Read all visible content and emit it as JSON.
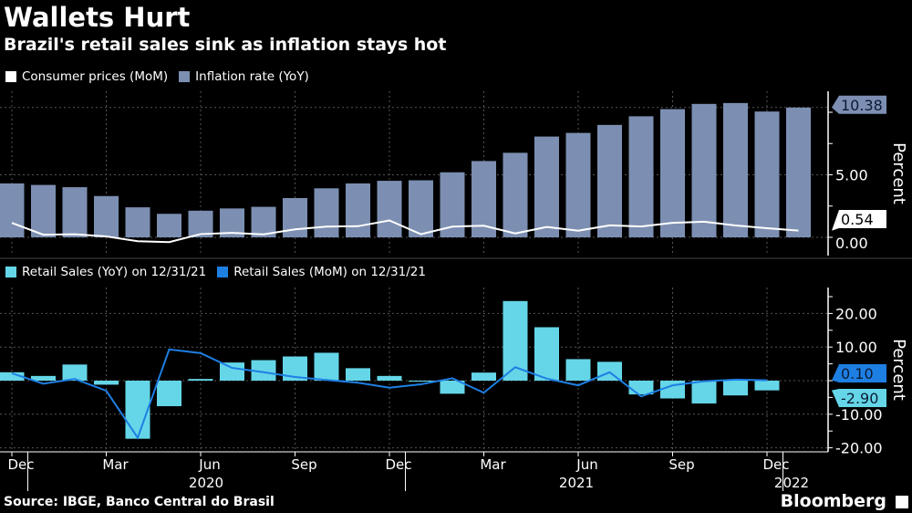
{
  "title": "Wallets Hurt",
  "subtitle": "Brazil's retail sales sink as inflation stays hot",
  "source": "Source: IBGE, Banco Central do Brasil",
  "brand": "Bloomberg",
  "colors": {
    "inflation_bar": "#7C8FB2",
    "cpi_line": "#FFFFFF",
    "retail_yoy_bar": "#65D6E8",
    "retail_mom_line": "#1E7FE3"
  },
  "chart_data": [
    {
      "type": "bar",
      "legend": [
        "Consumer prices (MoM)",
        "Inflation rate (YoY)"
      ],
      "ylabel": "Percent",
      "yticks": [
        "5.00",
        "0.00"
      ],
      "ylim": [
        -1.5,
        11.5
      ],
      "grid": true,
      "legend_placement": "top-left",
      "x": [
        "Dec 2019",
        "Jan 2020",
        "Feb 2020",
        "Mar 2020",
        "Apr 2020",
        "May 2020",
        "Jun 2020",
        "Jul 2020",
        "Aug 2020",
        "Sep 2020",
        "Oct 2020",
        "Nov 2020",
        "Dec 2020",
        "Jan 2021",
        "Feb 2021",
        "Mar 2021",
        "Apr 2021",
        "May 2021",
        "Jun 2021",
        "Jul 2021",
        "Aug 2021",
        "Sep 2021",
        "Oct 2021",
        "Nov 2021",
        "Dec 2021",
        "Jan 2022"
      ],
      "series": [
        {
          "name": "Inflation rate (YoY)",
          "type": "bar",
          "values": [
            4.31,
            4.19,
            4.01,
            3.3,
            2.4,
            1.88,
            2.13,
            2.31,
            2.44,
            3.14,
            3.92,
            4.31,
            4.52,
            4.56,
            5.2,
            6.1,
            6.76,
            8.06,
            8.35,
            8.99,
            9.68,
            10.25,
            10.67,
            10.74,
            10.06,
            10.38
          ],
          "last_label": "10.38"
        },
        {
          "name": "Consumer prices (MoM)",
          "type": "line",
          "values": [
            1.15,
            0.21,
            0.25,
            0.07,
            -0.31,
            -0.38,
            0.26,
            0.36,
            0.24,
            0.64,
            0.86,
            0.89,
            1.35,
            0.25,
            0.86,
            0.93,
            0.31,
            0.83,
            0.53,
            0.96,
            0.87,
            1.16,
            1.25,
            0.95,
            0.73,
            0.54
          ],
          "last_label": "0.54"
        }
      ]
    },
    {
      "type": "bar",
      "legend": [
        "Retail Sales (YoY) on 12/31/21",
        "Retail Sales  (MoM) on 12/31/21"
      ],
      "ylabel": "Percent",
      "yticks": [
        "20.00",
        "10.00",
        "-10.00",
        "-20.00"
      ],
      "ylim": [
        -22,
        27
      ],
      "grid": true,
      "legend_placement": "top-left",
      "x": [
        "Dec 2019",
        "Jan 2020",
        "Feb 2020",
        "Mar 2020",
        "Apr 2020",
        "May 2020",
        "Jun 2020",
        "Jul 2020",
        "Aug 2020",
        "Sep 2020",
        "Oct 2020",
        "Nov 2020",
        "Dec 2020",
        "Jan 2021",
        "Feb 2021",
        "Mar 2021",
        "Apr 2021",
        "May 2021",
        "Jun 2021",
        "Jul 2021",
        "Aug 2021",
        "Sep 2021",
        "Oct 2021",
        "Nov 2021",
        "Dec 2021"
      ],
      "series": [
        {
          "name": "Retail Sales (YoY) on 12/31/21",
          "type": "bar",
          "values": [
            2.5,
            1.4,
            4.8,
            -1.2,
            -17.3,
            -7.6,
            0.5,
            5.4,
            6.1,
            7.2,
            8.3,
            3.7,
            1.4,
            -0.3,
            -3.9,
            2.4,
            23.7,
            15.9,
            6.4,
            5.6,
            -4.1,
            -5.3,
            -6.8,
            -4.4,
            -2.9
          ],
          "last_label": "-2.90"
        },
        {
          "name": "Retail Sales  (MoM) on 12/31/21",
          "type": "line",
          "values": [
            2.2,
            -0.9,
            0.5,
            -3.0,
            -17.0,
            9.3,
            8.2,
            3.8,
            2.5,
            1.1,
            0.2,
            -0.6,
            -2.1,
            -1.1,
            0.7,
            -3.6,
            4.0,
            0.6,
            -1.4,
            2.5,
            -4.7,
            -1.4,
            -0.2,
            0.3,
            0.1
          ],
          "last_label": "0.10"
        }
      ]
    }
  ],
  "xaxis": {
    "month_labels": [
      "Dec",
      "Mar",
      "Jun",
      "Sep",
      "Dec",
      "Mar",
      "Jun",
      "Sep",
      "Dec"
    ],
    "year_labels": [
      "2020",
      "2021",
      "2022"
    ]
  }
}
